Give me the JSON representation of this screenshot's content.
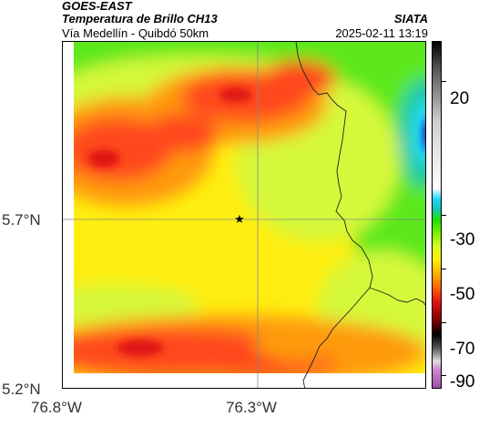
{
  "header": {
    "source": "GOES-EAST",
    "product": "Temperatura de Brillo CH13",
    "route": "Vía Medellín - Quibdó 50km",
    "org": "SIATA",
    "timestamp": "2025-02-11 13:19"
  },
  "axes": {
    "lat_labels": [
      "5.7°N",
      "5.2°N"
    ],
    "lon_labels": [
      "76.8°W",
      "76.3°W"
    ]
  },
  "colorbar": {
    "labels": [
      "20",
      "-30",
      "-50",
      "-70",
      "-90"
    ],
    "range": [
      -95,
      35
    ],
    "stops": [
      {
        "v": -95,
        "c": "#9b4fa8"
      },
      {
        "v": -88,
        "c": "#d08ad0"
      },
      {
        "v": -85,
        "c": "#dddddd"
      },
      {
        "v": -80,
        "c": "#555555"
      },
      {
        "v": -75,
        "c": "#000000"
      },
      {
        "v": -70,
        "c": "#7a0000"
      },
      {
        "v": -63,
        "c": "#e01010"
      },
      {
        "v": -57,
        "c": "#ff6a00"
      },
      {
        "v": -52,
        "c": "#ffb000"
      },
      {
        "v": -47,
        "c": "#ffee00"
      },
      {
        "v": -42,
        "c": "#d8ff20"
      },
      {
        "v": -37,
        "c": "#80f000"
      },
      {
        "v": -32,
        "c": "#1ee000"
      },
      {
        "v": -28,
        "c": "#10c8b0"
      },
      {
        "v": -24,
        "c": "#20d8ff"
      },
      {
        "v": -20,
        "c": "#ffffff"
      },
      {
        "v": 5,
        "c": "#cfcfcf"
      },
      {
        "v": 25,
        "c": "#555555"
      },
      {
        "v": 35,
        "c": "#000000"
      }
    ]
  },
  "map": {
    "marker": "star-marker",
    "colors": {
      "deep_red": "#e01818",
      "red": "#ff4a1a",
      "orange": "#ff9a10",
      "yellow": "#ffee10",
      "lime": "#d6f83a",
      "green": "#5ce81a",
      "teal": "#14c8a8",
      "cyan": "#2ae2ff",
      "blue": "#1060ff",
      "navy": "#0a1850"
    }
  }
}
